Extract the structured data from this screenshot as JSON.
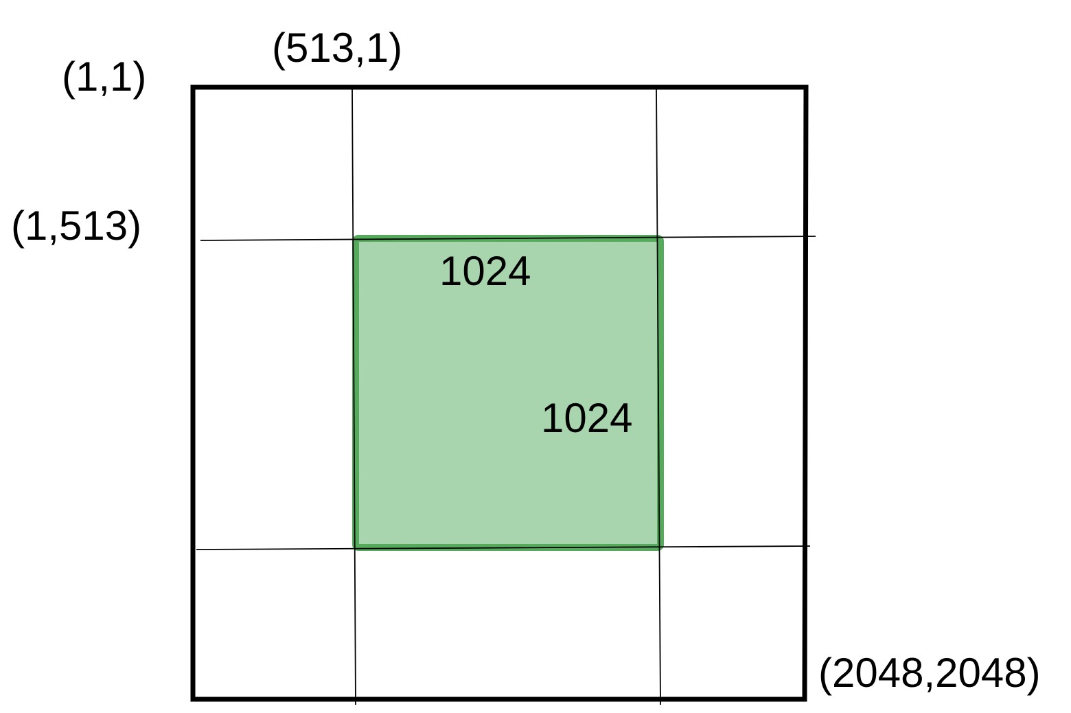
{
  "diagram": {
    "corner_labels": {
      "top_left": "(1,1)",
      "top_inner": "(513,1)",
      "left_inner": "(1,513)",
      "bottom_right": "(2048,2048)"
    },
    "region_labels": {
      "width": "1024",
      "height": "1024"
    },
    "colors": {
      "outer_border": "#000000",
      "grid_line": "#000000",
      "region_fill": "#a8d5ae",
      "region_border": "#55aa5c",
      "text": "#000000"
    }
  }
}
